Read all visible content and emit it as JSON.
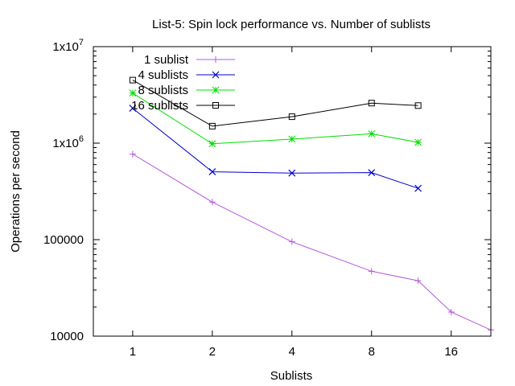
{
  "chart_data": {
    "type": "line",
    "title": "List-5: Spin lock performance vs. Number of sublists",
    "xlabel": "Sublists",
    "ylabel": "Operations per second",
    "x_scale": "log2",
    "y_scale": "log10",
    "xlim": [
      0.71,
      22.6
    ],
    "ylim": [
      10000,
      10000000
    ],
    "x_ticks": [
      {
        "value": 1,
        "label": "1"
      },
      {
        "value": 2,
        "label": "2"
      },
      {
        "value": 4,
        "label": "4"
      },
      {
        "value": 8,
        "label": "8"
      },
      {
        "value": 16,
        "label": "16"
      }
    ],
    "y_ticks": [
      {
        "value": 10000,
        "label": "10000"
      },
      {
        "value": 100000,
        "label": "100000"
      },
      {
        "value": 1000000,
        "label_base": "1x10",
        "label_exp": "6"
      },
      {
        "value": 10000000,
        "label_base": "1x10",
        "label_exp": "7"
      }
    ],
    "grid": false,
    "legend_position": "top-left",
    "series": [
      {
        "name": "1 sublist",
        "color": "#b45ad8",
        "marker": "plus",
        "points": [
          [
            1,
            770000
          ],
          [
            2,
            245000
          ],
          [
            4,
            95000
          ],
          [
            8,
            47000
          ],
          [
            12,
            37500
          ],
          [
            16,
            17800
          ],
          [
            22.6,
            11600
          ]
        ]
      },
      {
        "name": "4 sublists",
        "color": "#0000cc",
        "marker": "x",
        "points": [
          [
            1,
            2300000
          ],
          [
            2,
            505000
          ],
          [
            4,
            490000
          ],
          [
            8,
            495000
          ],
          [
            12,
            340000
          ]
        ]
      },
      {
        "name": "8 sublists",
        "color": "#00dd00",
        "marker": "star",
        "points": [
          [
            1,
            3300000
          ],
          [
            2,
            985000
          ],
          [
            4,
            1100000
          ],
          [
            8,
            1250000
          ],
          [
            12,
            1020000
          ]
        ]
      },
      {
        "name": "16 sublists",
        "color": "#000000",
        "marker": "square",
        "points": [
          [
            1,
            4500000
          ],
          [
            2,
            1500000
          ],
          [
            4,
            1880000
          ],
          [
            8,
            2600000
          ],
          [
            12,
            2450000
          ]
        ]
      }
    ]
  }
}
